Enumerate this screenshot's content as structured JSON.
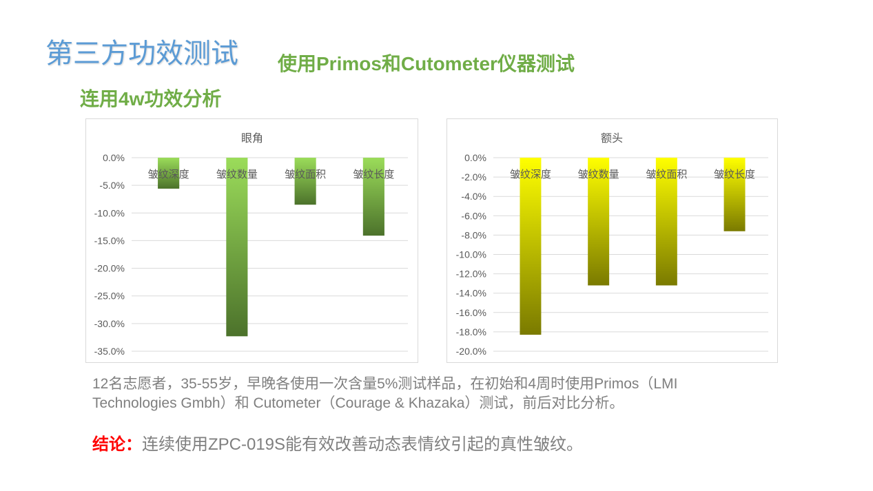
{
  "slide": {
    "title": "第三方功效测试",
    "subtitle": "使用Primos和Cutometer仪器测试",
    "section_heading": "连用4w功效分析",
    "description_lines": [
      "12名志愿者，35-55岁，早晚各使用一次含量5%测试样品，在初始和4周时使用Primos（LMI",
      "Technologies Gmbh）和 Cutometer（Courage & Khazaka）测试，前后对比分析。"
    ],
    "conclusion_label": "结论：",
    "conclusion_text": "连续使用ZPC-019S能有效改善动态表情纹引起的真性皱纹。"
  },
  "colors": {
    "title": "#5b9bd5",
    "green": "#70ad47",
    "body_text": "#7f7f7f",
    "conclusion_red": "#ff0000",
    "chart_text": "#595959",
    "gridline": "#d9d9d9",
    "chart_border": "#d9d9d9"
  },
  "chart_data": [
    {
      "type": "bar",
      "title": "眼角",
      "categories": [
        "皱纹深度",
        "皱纹数量",
        "皱纹面积",
        "皱纹长度"
      ],
      "values": [
        -5.6,
        -32.3,
        -8.5,
        -14.1
      ],
      "ylim": [
        -35,
        0
      ],
      "ytick_labels": [
        "0.0%",
        "-5.0%",
        "-10.0%",
        "-15.0%",
        "-20.0%",
        "-25.0%",
        "-30.0%",
        "-35.0%"
      ],
      "grid": true,
      "bar_gradient": [
        "#9bdc5a",
        "#4c722b"
      ]
    },
    {
      "type": "bar",
      "title": "额头",
      "categories": [
        "皱纹深度",
        "皱纹数量",
        "皱纹面积",
        "皱纹长度"
      ],
      "values": [
        -18.3,
        -13.2,
        -13.2,
        -7.6
      ],
      "ylim": [
        -20,
        0
      ],
      "ytick_labels": [
        "0.0%",
        "-2.0%",
        "-4.0%",
        "-6.0%",
        "-8.0%",
        "-10.0%",
        "-12.0%",
        "-14.0%",
        "-16.0%",
        "-18.0%",
        "-20.0%"
      ],
      "grid": true,
      "bar_gradient": [
        "#ffff00",
        "#7a7a00"
      ]
    }
  ]
}
